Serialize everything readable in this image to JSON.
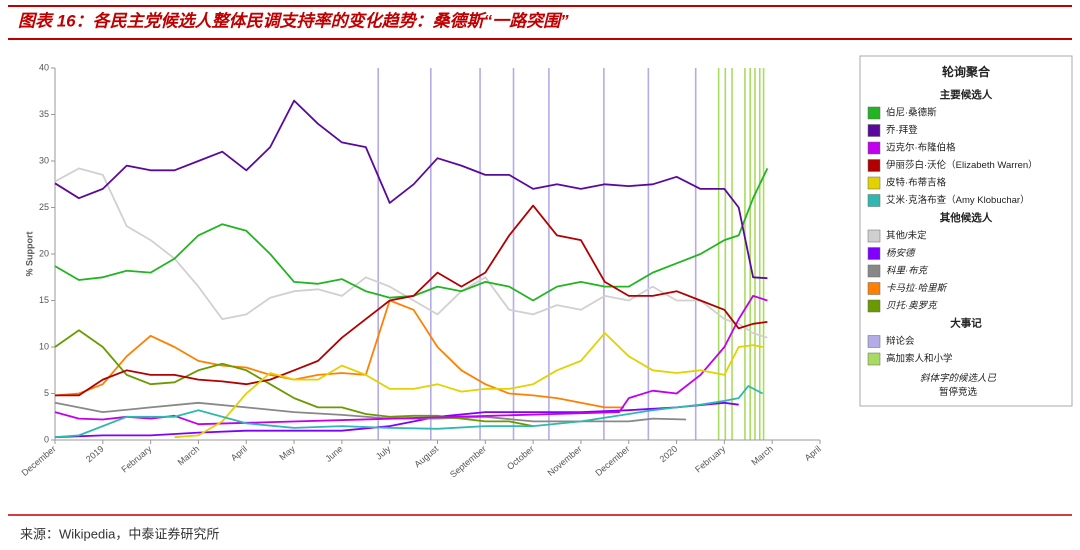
{
  "header": {
    "title": "图表 16：各民主党候选人整体民调支持率的变化趋势：桑德斯“一路突围”"
  },
  "footer": {
    "source": "来源：Wikipedia，中泰证券研究所"
  },
  "chart_data": {
    "type": "line",
    "ylabel": "% Support",
    "xlim": [
      0,
      16
    ],
    "ylim": [
      0,
      40
    ],
    "yticks": [
      0,
      5,
      10,
      15,
      20,
      25,
      30,
      35,
      40
    ],
    "xticks": [
      {
        "value": 0,
        "label": "December"
      },
      {
        "value": 1,
        "label": "2019"
      },
      {
        "value": 2,
        "label": "February"
      },
      {
        "value": 3,
        "label": "March"
      },
      {
        "value": 4,
        "label": "April"
      },
      {
        "value": 5,
        "label": "May"
      },
      {
        "value": 6,
        "label": "June"
      },
      {
        "value": 7,
        "label": "July"
      },
      {
        "value": 8,
        "label": "August"
      },
      {
        "value": 9,
        "label": "September"
      },
      {
        "value": 10,
        "label": "October"
      },
      {
        "value": 11,
        "label": "November"
      },
      {
        "value": 12,
        "label": "December"
      },
      {
        "value": 13,
        "label": "2020"
      },
      {
        "value": 14,
        "label": "February"
      },
      {
        "value": 15,
        "label": "March"
      },
      {
        "value": 16,
        "label": "April"
      }
    ],
    "legend": {
      "title": "轮询聚合",
      "main_title": "主要候选人",
      "other_title": "其他候选人",
      "events_title": "大事记",
      "note": [
        "斜体字的候选人已",
        "暂停竞选"
      ]
    },
    "series": [
      {
        "name": "伯尼·桑德斯",
        "color": "#22b422",
        "x": [
          0,
          0.5,
          1,
          1.5,
          2,
          2.5,
          3,
          3.5,
          4,
          4.5,
          5,
          5.5,
          6,
          6.5,
          7,
          7.5,
          8,
          8.5,
          9,
          9.5,
          10,
          10.5,
          11,
          11.5,
          12,
          12.5,
          13,
          13.5,
          14,
          14.3,
          14.6,
          14.9
        ],
        "values": [
          18.7,
          17.2,
          17.5,
          18.2,
          18,
          19.5,
          22,
          23.2,
          22.5,
          20,
          17,
          16.8,
          17.3,
          16,
          15.3,
          15.5,
          16.5,
          16,
          17,
          16.5,
          15,
          16.5,
          17,
          16.5,
          16.5,
          18,
          19,
          20,
          21.5,
          22,
          26,
          29.2
        ]
      },
      {
        "name": "乔·拜登",
        "color": "#5a0a9a",
        "x": [
          0,
          0.5,
          1,
          1.5,
          2,
          2.5,
          3,
          3.5,
          4,
          4.5,
          5,
          5.5,
          6,
          6.5,
          7,
          7.5,
          8,
          8.5,
          9,
          9.5,
          10,
          10.5,
          11,
          11.5,
          12,
          12.5,
          13,
          13.5,
          14,
          14.3,
          14.6,
          14.9
        ],
        "values": [
          27.6,
          26,
          27,
          29.5,
          29,
          29,
          30,
          31,
          29,
          31.5,
          36.5,
          34,
          32,
          31.5,
          25.5,
          27.5,
          30.3,
          29.5,
          28.5,
          28.5,
          27,
          27.5,
          27,
          27.5,
          27.3,
          27.5,
          28.3,
          27,
          27,
          25,
          17.5,
          17.4
        ]
      },
      {
        "name": "迈克尔·布隆伯格",
        "color": "#c000ee",
        "x": [
          0,
          0.5,
          1,
          1.5,
          2,
          2.5,
          3,
          11.8,
          12,
          12.5,
          13,
          13.5,
          14,
          14.3,
          14.6,
          14.9
        ],
        "values": [
          3,
          2.3,
          2.2,
          2.5,
          2.3,
          2.6,
          1.7,
          3,
          4.5,
          5.3,
          5,
          7,
          10,
          13,
          15.5,
          15
        ]
      },
      {
        "name": "伊丽莎白·沃伦（Elizabeth Warren）",
        "color": "#b00000",
        "x": [
          0,
          0.5,
          1,
          1.5,
          2,
          2.5,
          3,
          3.5,
          4,
          4.5,
          5,
          5.5,
          6,
          6.5,
          7,
          7.5,
          8,
          8.5,
          9,
          9.5,
          10,
          10.5,
          11,
          11.5,
          12,
          12.5,
          13,
          13.5,
          14,
          14.3,
          14.6,
          14.9
        ],
        "values": [
          4.8,
          4.8,
          6.5,
          7.5,
          7,
          7,
          6.5,
          6.3,
          6,
          6.5,
          7.5,
          8.5,
          11,
          13,
          15,
          15.5,
          18,
          16.5,
          18,
          22,
          25.2,
          22,
          21.5,
          17,
          15.5,
          15.5,
          16,
          15,
          14,
          12,
          12.5,
          12.7
        ]
      },
      {
        "name": "皮特·布蒂吉格",
        "color": "#e2d200",
        "x": [
          2.5,
          3,
          3.5,
          4,
          4.5,
          5,
          5.5,
          6,
          6.5,
          7,
          7.5,
          8,
          8.5,
          9,
          9.5,
          10,
          10.5,
          11,
          11.5,
          12,
          12.5,
          13,
          13.5,
          14,
          14.3,
          14.6,
          14.8
        ],
        "values": [
          0.3,
          0.5,
          2,
          5,
          7.2,
          6.5,
          6.5,
          8,
          7,
          5.5,
          5.5,
          6,
          5.2,
          5.5,
          5.5,
          6,
          7.5,
          8.5,
          11.5,
          9,
          7.5,
          7.2,
          7.5,
          7,
          10,
          10.2,
          10
        ]
      },
      {
        "name": "艾米·克洛布查（Amy Klobuchar）",
        "color": "#30b8b0",
        "x": [
          0,
          0.5,
          1,
          1.5,
          2,
          2.5,
          3,
          3.5,
          4,
          5,
          6,
          7,
          8,
          9,
          10,
          11,
          12,
          12.5,
          13,
          13.5,
          14,
          14.3,
          14.5,
          14.8
        ],
        "values": [
          0.3,
          0.5,
          1.5,
          2.5,
          2.5,
          2.5,
          3.2,
          2.5,
          1.8,
          1.3,
          1.5,
          1.3,
          1.2,
          1.5,
          1.5,
          2,
          2.8,
          3.2,
          3.5,
          3.8,
          4.2,
          4.5,
          5.8,
          5
        ]
      }
    ],
    "other_series": [
      {
        "name": "其他/未定",
        "color": "#d0d0d0",
        "x": [
          0,
          0.5,
          1,
          1.5,
          2,
          2.5,
          3,
          3.5,
          4,
          4.5,
          5,
          5.5,
          6,
          6.5,
          7,
          7.5,
          8,
          8.5,
          9,
          9.5,
          10,
          10.5,
          11,
          11.5,
          12,
          12.5,
          13,
          13.5,
          14,
          14.3,
          14.6,
          14.9
        ],
        "values": [
          27.8,
          29.2,
          28.5,
          23,
          21.5,
          19.5,
          16.5,
          13,
          13.5,
          15.3,
          16,
          16.2,
          15.5,
          17.5,
          16.5,
          15,
          13.5,
          16,
          17.5,
          14,
          13.5,
          14.5,
          14,
          15.5,
          15,
          16.5,
          15,
          15,
          13,
          12.5,
          11.5,
          11
        ]
      },
      {
        "name": "杨安德",
        "color": "#8000ff",
        "italic": true,
        "x": [
          0,
          1,
          2,
          3,
          4,
          5,
          6,
          7,
          8,
          9,
          10,
          11,
          12,
          13,
          14,
          14.3
        ],
        "values": [
          0.3,
          0.5,
          0.5,
          0.8,
          1,
          1,
          1,
          1.5,
          2.5,
          3,
          3,
          3,
          3.2,
          3.5,
          4,
          3.8
        ]
      },
      {
        "name": "科里·布克",
        "color": "#888888",
        "italic": true,
        "x": [
          0,
          1,
          2,
          3,
          4,
          5,
          6,
          7,
          8,
          9,
          10,
          11,
          12,
          12.5,
          13.2
        ],
        "values": [
          4,
          3,
          3.5,
          4,
          3.5,
          3,
          2.7,
          2.3,
          2.3,
          2.5,
          2,
          2,
          2,
          2.3,
          2.2
        ]
      },
      {
        "name": "卡马拉·哈里斯",
        "color": "#ff8000",
        "italic": true,
        "x": [
          0,
          0.5,
          1,
          1.5,
          2,
          2.5,
          3,
          3.5,
          4,
          4.5,
          5,
          5.5,
          6,
          6.5,
          7,
          7.5,
          8,
          8.5,
          9,
          9.5,
          10,
          10.5,
          11,
          11.5,
          11.9
        ],
        "values": [
          4.8,
          5,
          6,
          9,
          11.2,
          10,
          8.5,
          8,
          7.8,
          7,
          6.5,
          7,
          7.2,
          7,
          15,
          14,
          10,
          7.5,
          6,
          5,
          4.8,
          4.5,
          4,
          3.5,
          3.5
        ]
      },
      {
        "name": "贝托·奥罗克",
        "color": "#6a9a00",
        "italic": true,
        "x": [
          0,
          0.5,
          1,
          1.5,
          2,
          2.5,
          3,
          3.5,
          4,
          4.5,
          5,
          5.5,
          6,
          6.5,
          7,
          7.5,
          8,
          8.5,
          9,
          9.5,
          10
        ],
        "values": [
          10,
          11.8,
          10,
          7,
          6,
          6.2,
          7.5,
          8.2,
          7.5,
          6,
          4.5,
          3.5,
          3.5,
          2.8,
          2.5,
          2.6,
          2.6,
          2.3,
          2,
          2,
          1.5
        ]
      }
    ],
    "events": [
      {
        "name": "辩论会",
        "color": "#b4ace6",
        "x": [
          6.76,
          7.86,
          8.89,
          9.59,
          10.33,
          11.48,
          12.41,
          13.4
        ]
      },
      {
        "name": "高加索人和小学",
        "color": "#a8dc60",
        "x": [
          13.88,
          14.02,
          14.16,
          14.43,
          14.54,
          14.64,
          14.74,
          14.82
        ]
      }
    ]
  }
}
